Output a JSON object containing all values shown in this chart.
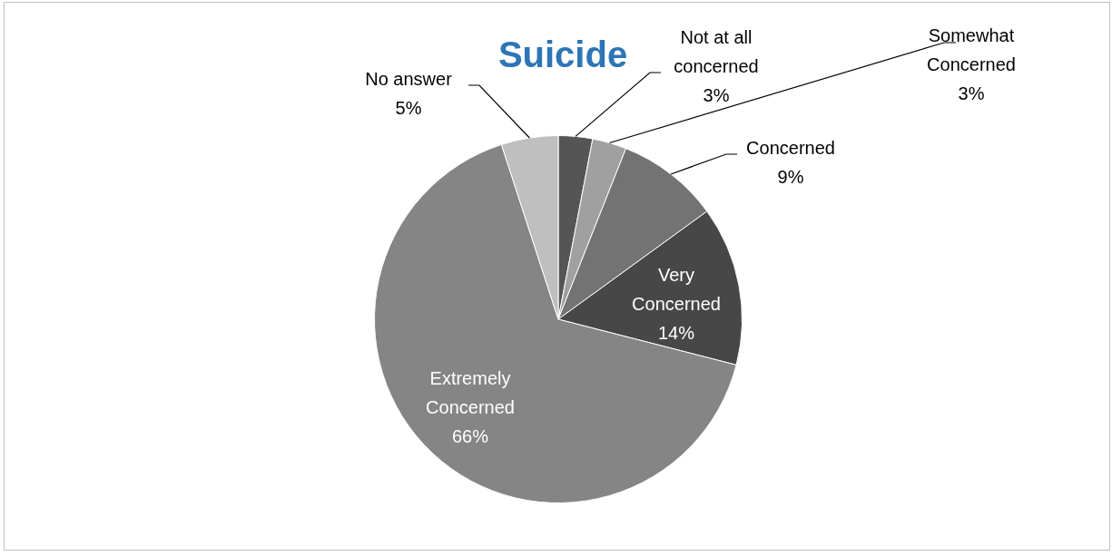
{
  "chart_data": {
    "type": "pie",
    "title": "Suicide",
    "categories": [
      "Not at all concerned",
      "Somewhat Concerned",
      "Concerned",
      "Very Concerned",
      "Extremely Concerned",
      "No answer"
    ],
    "values": [
      3,
      3,
      9,
      14,
      66,
      5
    ],
    "colors": [
      "#555555",
      "#a0a0a0",
      "#737373",
      "#474747",
      "#858585",
      "#bfbfbf"
    ],
    "value_labels": [
      "3%",
      "3%",
      "9%",
      "14%",
      "66%",
      "5%"
    ]
  }
}
